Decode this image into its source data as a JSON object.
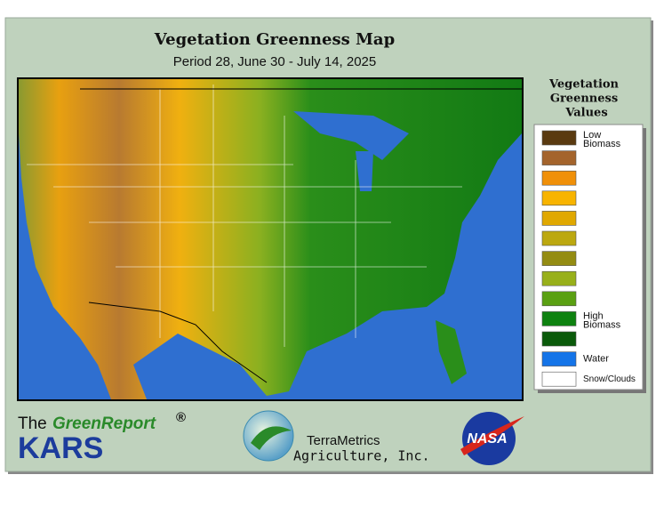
{
  "header": {
    "title": "Vegetation Greenness Map",
    "subtitle": "Period 28, June 30 - July 14, 2025"
  },
  "legend": {
    "title": [
      "Vegetation",
      "Greenness",
      "Values"
    ],
    "items": [
      {
        "color": "#5a3a10",
        "label": [
          "Low",
          "Biomass"
        ]
      },
      {
        "color": "#a4642c"
      },
      {
        "color": "#f09008"
      },
      {
        "color": "#f8b400"
      },
      {
        "color": "#e0a800"
      },
      {
        "color": "#bca810"
      },
      {
        "color": "#948c12"
      },
      {
        "color": "#98b01a"
      },
      {
        "color": "#5aa012"
      },
      {
        "color": "#0e8210",
        "label": [
          "High",
          "Biomass"
        ]
      },
      {
        "color": "#0a5a0a"
      },
      {
        "color": "#1474e8",
        "label": [
          "Water"
        ]
      },
      {
        "color": "#ffffff",
        "label": [
          "Snow/Clouds"
        ]
      }
    ]
  },
  "logos": {
    "the": "The",
    "green_report": "GreenReport",
    "registered": "®",
    "kars": "KARS",
    "terrametrics": "TerraMetrics",
    "agriculture": "Agriculture, Inc.",
    "nasa": "NASA"
  }
}
